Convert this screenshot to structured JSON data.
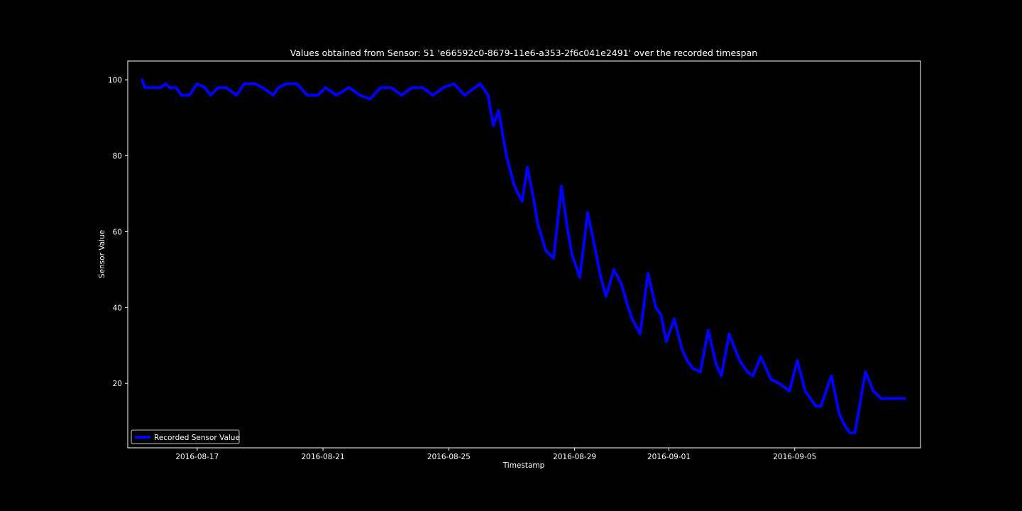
{
  "chart_data": {
    "type": "line",
    "title": "Values obtained from Sensor: 51 'e66592c0-8679-11e6-a353-2f6c041e2491' over the recorded timespan",
    "xlabel": "Timestamp",
    "ylabel": "Sensor Value",
    "x_is_date": true,
    "xlim": [
      "2016-08-14T19:00",
      "2016-09-09T00:00"
    ],
    "ylim": [
      3,
      105
    ],
    "x_ticks": [
      "2016-08-17",
      "2016-08-21",
      "2016-08-25",
      "2016-08-29",
      "2016-09-01",
      "2016-09-05"
    ],
    "y_ticks": [
      20,
      40,
      60,
      80,
      100
    ],
    "grid": false,
    "legend": {
      "position": "bottom-left",
      "entries": [
        "Recorded Sensor Value"
      ]
    },
    "colors": {
      "background": "#000000",
      "series": "#0000ff",
      "foreground": "#ffffff"
    },
    "series": [
      {
        "name": "Recorded Sensor Value",
        "x": [
          "2016-08-15T06:00",
          "2016-08-15T08:00",
          "2016-08-15T12:00",
          "2016-08-15T20:00",
          "2016-08-16T00:00",
          "2016-08-16T03:00",
          "2016-08-16T08:00",
          "2016-08-16T12:00",
          "2016-08-16T18:00",
          "2016-08-17T00:00",
          "2016-08-17T06:00",
          "2016-08-17T10:00",
          "2016-08-17T16:00",
          "2016-08-17T22:00",
          "2016-08-18T06:00",
          "2016-08-18T12:00",
          "2016-08-18T20:00",
          "2016-08-19T02:00",
          "2016-08-19T10:00",
          "2016-08-19T14:00",
          "2016-08-19T20:00",
          "2016-08-20T04:00",
          "2016-08-20T12:00",
          "2016-08-20T20:00",
          "2016-08-21T02:00",
          "2016-08-21T10:00",
          "2016-08-21T20:00",
          "2016-08-22T04:00",
          "2016-08-22T12:00",
          "2016-08-22T20:00",
          "2016-08-23T04:00",
          "2016-08-23T12:00",
          "2016-08-23T20:00",
          "2016-08-24T04:00",
          "2016-08-24T12:00",
          "2016-08-24T20:00",
          "2016-08-25T04:00",
          "2016-08-25T12:00",
          "2016-08-25T20:00",
          "2016-08-26T00:00",
          "2016-08-26T06:00",
          "2016-08-26T10:00",
          "2016-08-26T14:00",
          "2016-08-26T20:00",
          "2016-08-27T02:00",
          "2016-08-27T08:00",
          "2016-08-27T12:00",
          "2016-08-27T16:00",
          "2016-08-27T20:00",
          "2016-08-28T02:00",
          "2016-08-28T08:00",
          "2016-08-28T14:00",
          "2016-08-28T18:00",
          "2016-08-28T22:00",
          "2016-08-29T04:00",
          "2016-08-29T10:00",
          "2016-08-29T16:00",
          "2016-08-29T20:00",
          "2016-08-30T00:00",
          "2016-08-30T06:00",
          "2016-08-30T12:00",
          "2016-08-30T16:00",
          "2016-08-30T20:00",
          "2016-08-31T02:00",
          "2016-08-31T08:00",
          "2016-08-31T14:00",
          "2016-08-31T18:00",
          "2016-08-31T22:00",
          "2016-09-01T04:00",
          "2016-09-01T10:00",
          "2016-09-01T14:00",
          "2016-09-01T18:00",
          "2016-09-02T00:00",
          "2016-09-02T06:00",
          "2016-09-02T12:00",
          "2016-09-02T16:00",
          "2016-09-02T22:00",
          "2016-09-03T06:00",
          "2016-09-03T12:00",
          "2016-09-03T16:00",
          "2016-09-03T22:00",
          "2016-09-04T06:00",
          "2016-09-04T12:00",
          "2016-09-04T16:00",
          "2016-09-04T20:00",
          "2016-09-05T02:00",
          "2016-09-05T08:00",
          "2016-09-05T12:00",
          "2016-09-05T16:00",
          "2016-09-05T20:00",
          "2016-09-06T04:00",
          "2016-09-06T10:00",
          "2016-09-06T14:00",
          "2016-09-06T18:00",
          "2016-09-06T22:00",
          "2016-09-07T06:00",
          "2016-09-07T12:00",
          "2016-09-07T18:00",
          "2016-09-08T00:00",
          "2016-09-08T04:00",
          "2016-09-08T08:00",
          "2016-09-08T12:00"
        ],
        "y": [
          100,
          98,
          98,
          98,
          99,
          98,
          98,
          96,
          96,
          99,
          98,
          96,
          98,
          98,
          96,
          99,
          99,
          98,
          96,
          98,
          99,
          99,
          96,
          96,
          98,
          96,
          98,
          96,
          95,
          98,
          98,
          96,
          98,
          98,
          96,
          98,
          99,
          96,
          98,
          99,
          96,
          88,
          92,
          80,
          72,
          68,
          77,
          70,
          62,
          55,
          53,
          72,
          62,
          54,
          48,
          65,
          55,
          48,
          43,
          50,
          46,
          41,
          37,
          33,
          49,
          40,
          38,
          31,
          37,
          29,
          26,
          24,
          23,
          34,
          25,
          22,
          33,
          26,
          23,
          22,
          27,
          21,
          20,
          19,
          18,
          26,
          18,
          16,
          14,
          14,
          22,
          12,
          9,
          7,
          7,
          23,
          18,
          16,
          16,
          16,
          16,
          16
        ]
      }
    ]
  }
}
